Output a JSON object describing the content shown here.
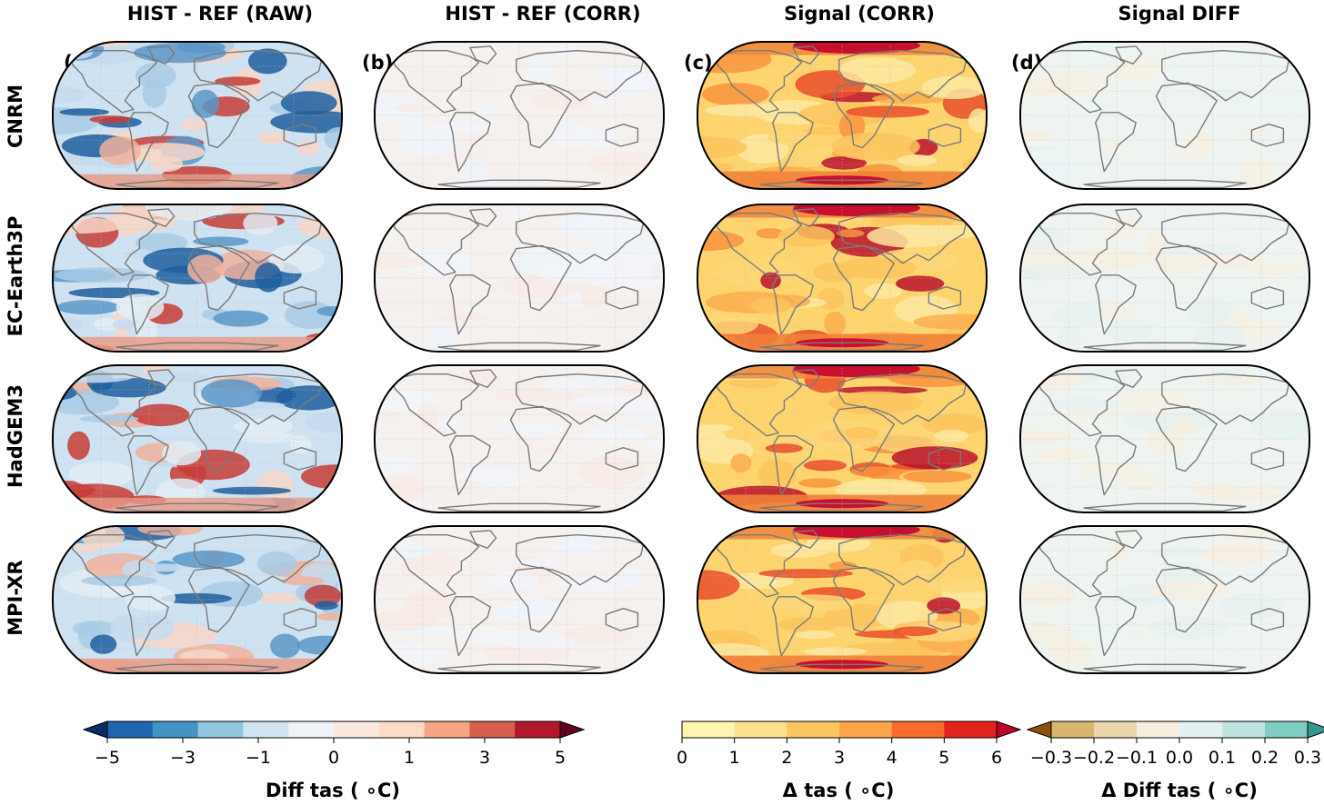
{
  "columns": [
    {
      "title": "HIST - REF (RAW)",
      "letter": "(a)",
      "style": "raw"
    },
    {
      "title": "HIST - REF (CORR)",
      "letter": "(b)",
      "style": "corr"
    },
    {
      "title": "Signal (CORR)",
      "letter": "(c)",
      "style": "signal"
    },
    {
      "title": "Signal DIFF",
      "letter": "(d)",
      "style": "diff"
    }
  ],
  "rows": [
    "CNRM",
    "EC-Earth3P",
    "HadGEM3",
    "MPI-XR"
  ],
  "colorbars": [
    {
      "label": "Diff tas ($^\\circ$C)",
      "label_display": "Diff tas ( ∘C)",
      "colors": [
        "#053061",
        "#2166ac",
        "#4393c3",
        "#92c5de",
        "#d1e5f0",
        "#eef3f8",
        "#fbe9e0",
        "#fddbc7",
        "#f4a582",
        "#d6604d",
        "#b2182b",
        "#67001f"
      ],
      "extend": "both",
      "ticks": [
        "−5",
        "−3",
        "−1",
        "0",
        "1",
        "3",
        "5"
      ]
    },
    {
      "label": "Δ tas ( ∘C)",
      "colors": [
        "#fff4b0",
        "#fee190",
        "#fdc55e",
        "#fca54a",
        "#f86b2d",
        "#e3231e",
        "#bd0026"
      ],
      "extend": "max",
      "ticks": [
        "0",
        "1",
        "2",
        "3",
        "4",
        "5",
        "6"
      ]
    },
    {
      "label": "Δ Diff tas ( ∘C)",
      "colors": [
        "#8c510a",
        "#d8b670",
        "#ecd7ac",
        "#f6efe0",
        "#e3f1f1",
        "#bfe4df",
        "#80cdc1",
        "#35978f"
      ],
      "extend": "both",
      "ticks": [
        "−0.3",
        "−0.2",
        "−0.1",
        "0.0",
        "0.1",
        "0.2",
        "0.3"
      ]
    }
  ]
}
